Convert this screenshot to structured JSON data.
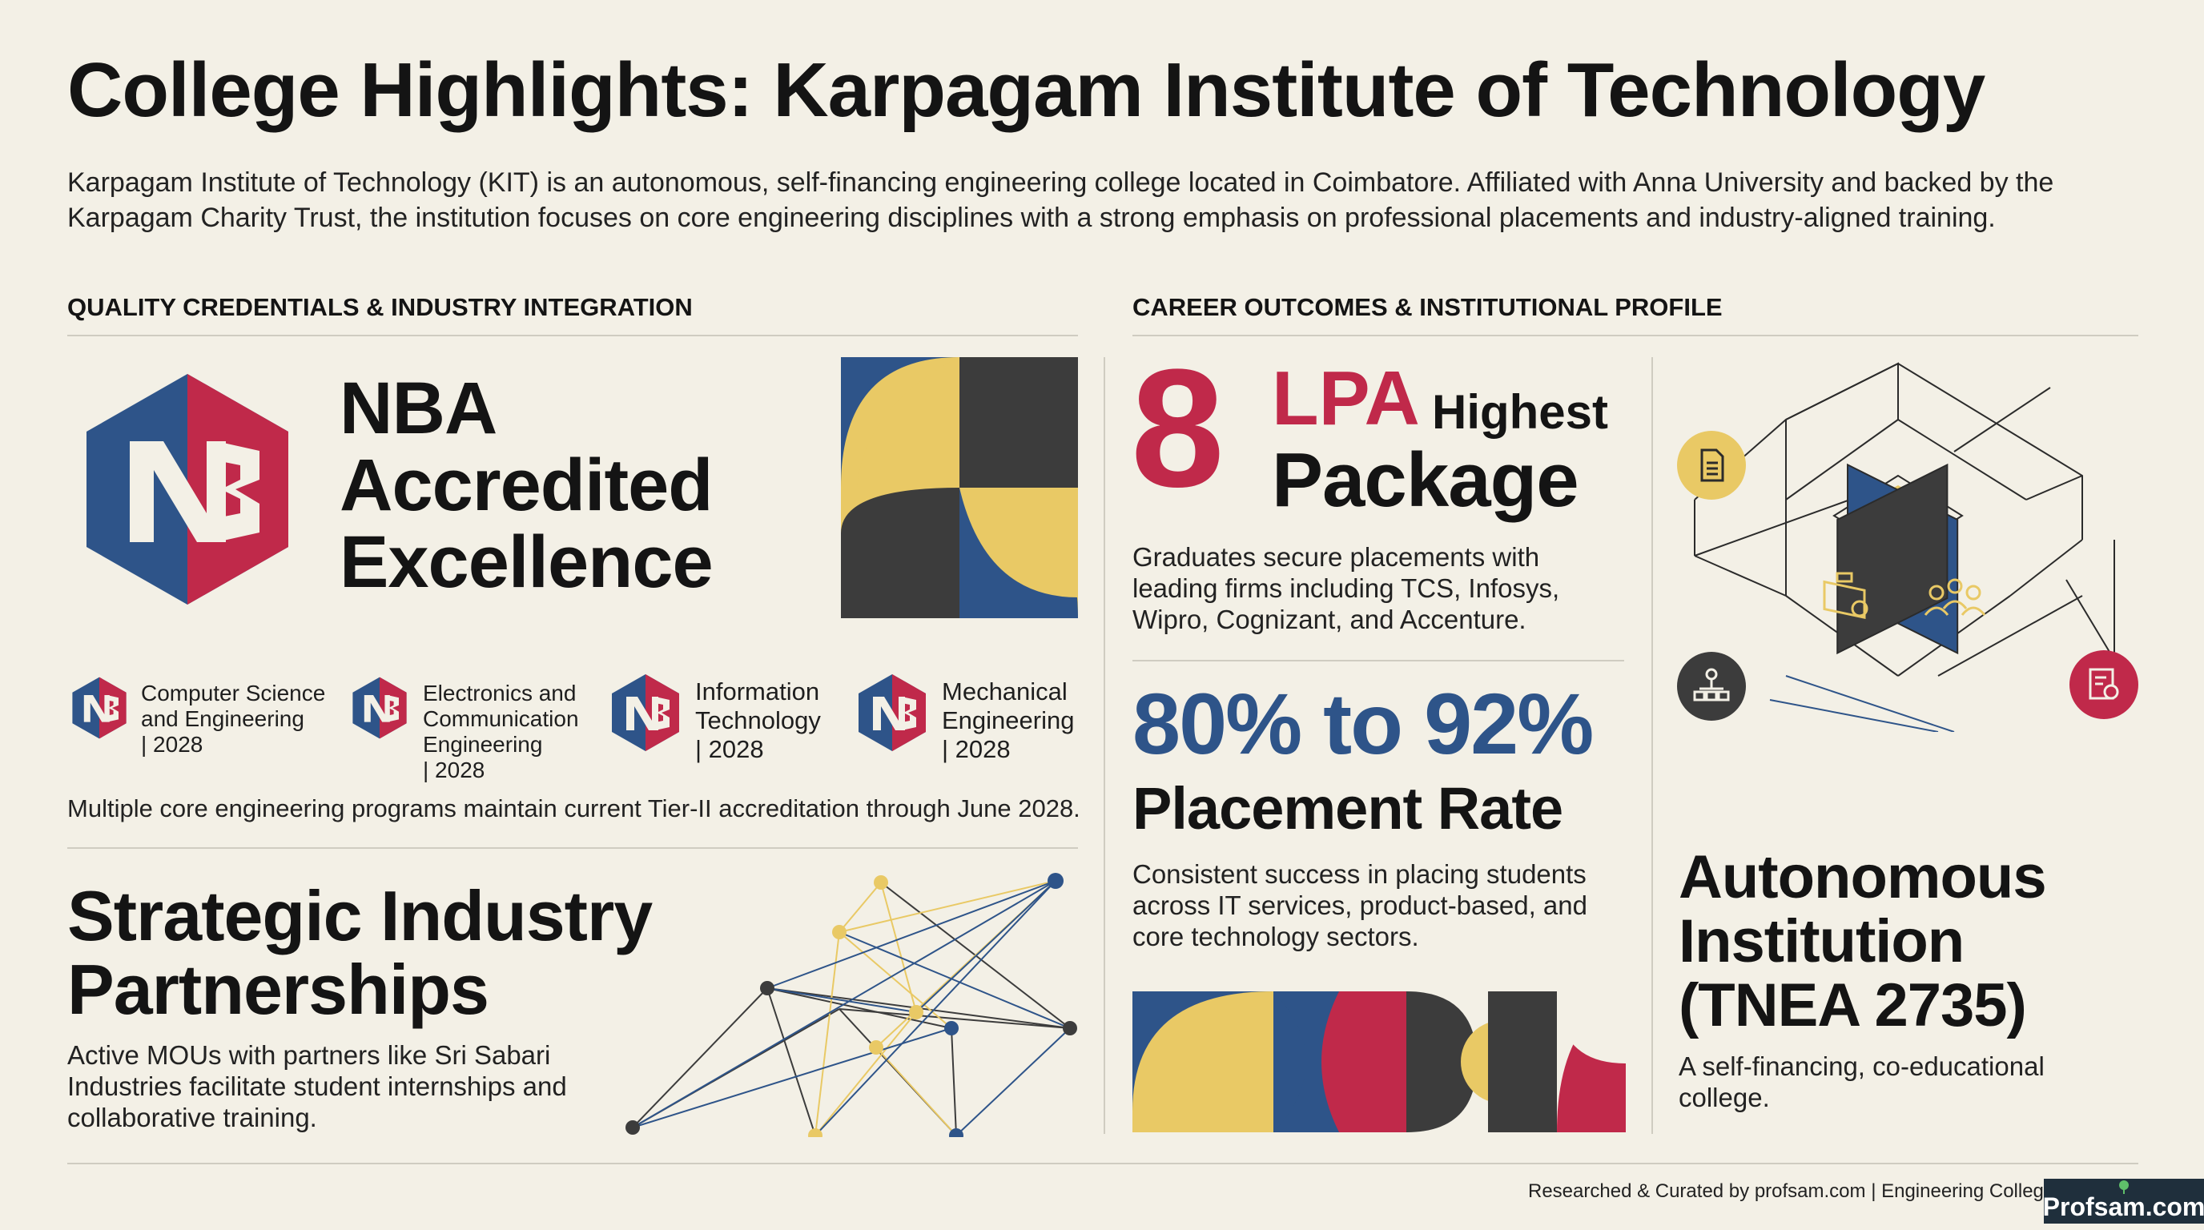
{
  "title": "College Highlights: Karpagam Institute of Technology",
  "intro": "Karpagam Institute of Technology (KIT) is an autonomous, self-financing engineering college located in Coimbatore. Affiliated with Anna University and backed by the Karpagam Charity Trust, the institution focuses on core engineering disciplines with a strong emphasis on professional placements and industry-aligned training.",
  "left_section": {
    "heading": "QUALITY CREDENTIALS & INDUSTRY INTEGRATION",
    "nba": {
      "line1": "NBA",
      "line2": "Accredited",
      "line3": "Excellence"
    },
    "programs": [
      {
        "name": "Computer Science and Engineering",
        "year": "| 2028"
      },
      {
        "name": "Electronics and Communication Engineering",
        "year": "| 2028"
      },
      {
        "name": "Information Technology",
        "year": "| 2028"
      },
      {
        "name": "Mechanical Engineering",
        "year": "| 2028"
      }
    ],
    "accreditation_note": "Multiple core engineering programs maintain current Tier-II accreditation through June 2028.",
    "partnerships": {
      "title_line1": "Strategic Industry",
      "title_line2": "Partnerships",
      "description": "Active MOUs with partners like Sri Sabari Industries facilitate student internships and collaborative training."
    }
  },
  "right_section": {
    "heading": "CAREER OUTCOMES & INSTITUTIONAL PROFILE",
    "package": {
      "value": "8",
      "unit": "LPA",
      "label_small": "Highest",
      "label_big": "Package",
      "description": "Graduates secure placements with leading firms including TCS, Infosys, Wipro, Cognizant, and Accenture."
    },
    "placement": {
      "value": "80% to 92%",
      "label": "Placement Rate",
      "description": "Consistent success in placing students across IT services, product-based, and core technology sectors."
    },
    "autonomous": {
      "title_line1": "Autonomous",
      "title_line2": "Institution",
      "title_line3": "(TNEA 2735)",
      "description": "A self-financing, co-educational college."
    }
  },
  "footer": {
    "credit": "Researched & Curated by profsam.com | Engineering Colleg",
    "brand": "Profsam.com"
  },
  "colors": {
    "background": "#f3f0e6",
    "navy": "#2e5489",
    "crimson": "#c0294a",
    "gold": "#e9c965",
    "charcoal": "#3c3c3c"
  },
  "icons": [
    "nba-logo",
    "document-icon",
    "briefcase-icon",
    "people-icon",
    "org-chart-icon",
    "certificate-icon"
  ]
}
